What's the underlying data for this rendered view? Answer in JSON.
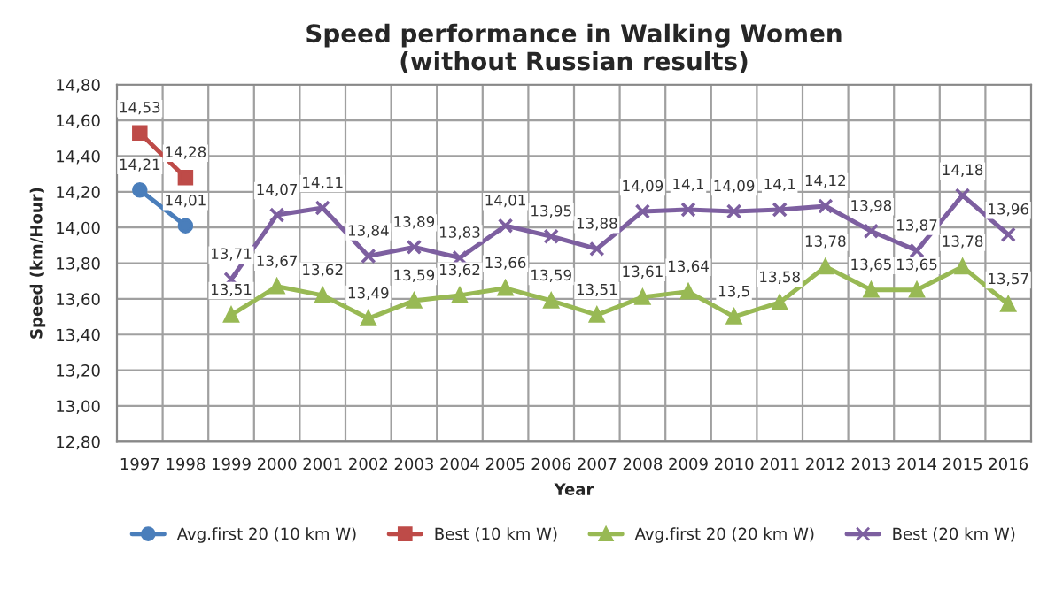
{
  "chart_data": {
    "type": "line",
    "title": "Speed performance in Walking Women\n(without Russian results)",
    "xlabel": "Year",
    "ylabel": "Speed (km/Hour)",
    "categories": [
      "1997",
      "1998",
      "1999",
      "2000",
      "2001",
      "2002",
      "2003",
      "2004",
      "2005",
      "2006",
      "2007",
      "2008",
      "2009",
      "2010",
      "2011",
      "2012",
      "2013",
      "2014",
      "2015",
      "2016"
    ],
    "series": [
      {
        "name": "Avg.first 20 (10 km W)",
        "color": "#4a7ebb",
        "marker": "circle",
        "values": [
          14.21,
          14.01,
          null,
          null,
          null,
          null,
          null,
          null,
          null,
          null,
          null,
          null,
          null,
          null,
          null,
          null,
          null,
          null,
          null,
          null
        ],
        "value_labels": [
          "14,21",
          "14,01",
          null,
          null,
          null,
          null,
          null,
          null,
          null,
          null,
          null,
          null,
          null,
          null,
          null,
          null,
          null,
          null,
          null,
          null
        ]
      },
      {
        "name": "Best (10 km W)",
        "color": "#be4b48",
        "marker": "square",
        "values": [
          14.53,
          14.28,
          null,
          null,
          null,
          null,
          null,
          null,
          null,
          null,
          null,
          null,
          null,
          null,
          null,
          null,
          null,
          null,
          null,
          null
        ],
        "value_labels": [
          "14,53",
          "14,28",
          null,
          null,
          null,
          null,
          null,
          null,
          null,
          null,
          null,
          null,
          null,
          null,
          null,
          null,
          null,
          null,
          null,
          null
        ]
      },
      {
        "name": "Avg.first 20 (20 km W)",
        "color": "#98b954",
        "marker": "triangle",
        "values": [
          null,
          null,
          13.51,
          13.67,
          13.62,
          13.49,
          13.59,
          13.62,
          13.66,
          13.59,
          13.51,
          13.61,
          13.64,
          13.5,
          13.58,
          13.78,
          13.65,
          13.65,
          13.78,
          13.57
        ],
        "value_labels": [
          null,
          null,
          "13,51",
          "13,67",
          "13,62",
          "13,49",
          "13,59",
          "13,62",
          "13,66",
          "13,59",
          "13,51",
          "13,61",
          "13,64",
          "13,5",
          "13,58",
          "13,78",
          "13,65",
          "13,65",
          "13,78",
          "13,57"
        ]
      },
      {
        "name": "Best (20 km W)",
        "color": "#7d5fa0",
        "marker": "cross",
        "values": [
          null,
          null,
          13.71,
          14.07,
          14.11,
          13.84,
          13.89,
          13.83,
          14.01,
          13.95,
          13.88,
          14.09,
          14.1,
          14.09,
          14.1,
          14.12,
          13.98,
          13.87,
          14.18,
          13.96
        ],
        "value_labels": [
          null,
          null,
          "13,71",
          "14,07",
          "14,11",
          "13,84",
          "13,89",
          "13,83",
          "14,01",
          "13,95",
          "13,88",
          "14,09",
          "14,1",
          "14,09",
          "14,1",
          "14,12",
          "13,98",
          "13,87",
          "14,18",
          "13,96"
        ]
      }
    ],
    "ylim": [
      12.8,
      14.8
    ],
    "yticks": [
      {
        "value": 12.8,
        "label": "12,80"
      },
      {
        "value": 13.0,
        "label": "13,00"
      },
      {
        "value": 13.2,
        "label": "13,20"
      },
      {
        "value": 13.4,
        "label": "13,40"
      },
      {
        "value": 13.6,
        "label": "13,60"
      },
      {
        "value": 13.8,
        "label": "13,80"
      },
      {
        "value": 14.0,
        "label": "14,00"
      },
      {
        "value": 14.2,
        "label": "14,20"
      },
      {
        "value": 14.4,
        "label": "14,40"
      },
      {
        "value": 14.6,
        "label": "14,60"
      },
      {
        "value": 14.8,
        "label": "14,80"
      }
    ],
    "grid": true,
    "legend": "bottom",
    "line_style": "solid"
  }
}
